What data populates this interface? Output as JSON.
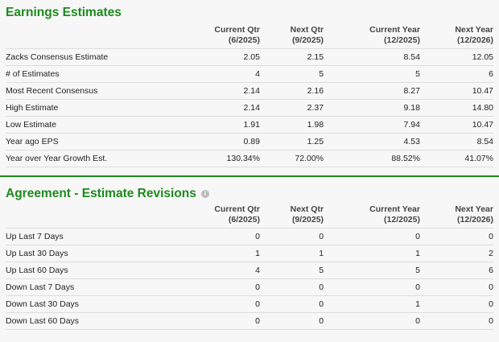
{
  "earnings": {
    "title": "Earnings Estimates",
    "columns": [
      {
        "label": "Current Qtr",
        "sub": "(6/2025)"
      },
      {
        "label": "Next Qtr",
        "sub": "(9/2025)"
      },
      {
        "label": "Current Year",
        "sub": "(12/2025)"
      },
      {
        "label": "Next Year",
        "sub": "(12/2026)"
      }
    ],
    "rows": [
      {
        "label": "Zacks Consensus Estimate",
        "values": [
          "2.05",
          "2.15",
          "8.54",
          "12.05"
        ]
      },
      {
        "label": "# of Estimates",
        "values": [
          "4",
          "5",
          "5",
          "6"
        ]
      },
      {
        "label": "Most Recent Consensus",
        "values": [
          "2.14",
          "2.16",
          "8.27",
          "10.47"
        ]
      },
      {
        "label": "High Estimate",
        "values": [
          "2.14",
          "2.37",
          "9.18",
          "14.80"
        ]
      },
      {
        "label": "Low Estimate",
        "values": [
          "1.91",
          "1.98",
          "7.94",
          "10.47"
        ]
      },
      {
        "label": "Year ago EPS",
        "values": [
          "0.89",
          "1.25",
          "4.53",
          "8.54"
        ]
      },
      {
        "label": "Year over Year Growth Est.",
        "values": [
          "130.34%",
          "72.00%",
          "88.52%",
          "41.07%"
        ]
      }
    ]
  },
  "agreement": {
    "title": "Agreement - Estimate Revisions",
    "info_icon": "info-icon",
    "columns": [
      {
        "label": "Current Qtr",
        "sub": "(6/2025)"
      },
      {
        "label": "Next Qtr",
        "sub": "(9/2025)"
      },
      {
        "label": "Current Year",
        "sub": "(12/2025)"
      },
      {
        "label": "Next Year",
        "sub": "(12/2026)"
      }
    ],
    "rows": [
      {
        "label": "Up Last 7 Days",
        "values": [
          "0",
          "0",
          "0",
          "0"
        ]
      },
      {
        "label": "Up Last 30 Days",
        "values": [
          "1",
          "1",
          "1",
          "2"
        ]
      },
      {
        "label": "Up Last 60 Days",
        "values": [
          "4",
          "5",
          "5",
          "6"
        ]
      },
      {
        "label": "Down Last 7 Days",
        "values": [
          "0",
          "0",
          "0",
          "0"
        ]
      },
      {
        "label": "Down Last 30 Days",
        "values": [
          "0",
          "0",
          "1",
          "0"
        ]
      },
      {
        "label": "Down Last 60 Days",
        "values": [
          "0",
          "0",
          "0",
          "0"
        ]
      }
    ]
  },
  "colors": {
    "accent": "#1d8a1d"
  }
}
